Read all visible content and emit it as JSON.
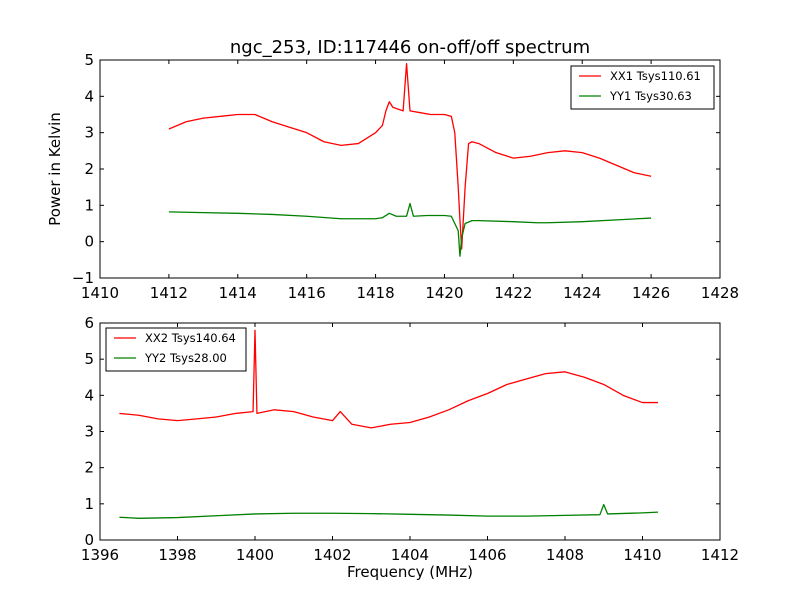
{
  "title": "ngc_253, ID:117446 on-off/off spectrum",
  "colors": {
    "red": "#ff0000",
    "green": "#008000",
    "axes": "#000000"
  },
  "chart_data": [
    {
      "type": "line",
      "title": "ngc_253, ID:117446 on-off/off spectrum",
      "xlabel": "",
      "ylabel": "Power in Kelvin",
      "xlim": [
        1410,
        1428
      ],
      "ylim": [
        -1,
        5
      ],
      "xticks": [
        1410,
        1412,
        1414,
        1416,
        1418,
        1420,
        1422,
        1424,
        1426,
        1428
      ],
      "yticks": [
        -1,
        0,
        1,
        2,
        3,
        4,
        5
      ],
      "ytick_labels": [
        "−1",
        "0",
        "1",
        "2",
        "3",
        "4",
        "5"
      ],
      "grid": false,
      "legend_position": "upper right",
      "series": [
        {
          "name": "XX1 Tsys110.61",
          "color": "#ff0000",
          "x": [
            1412.0,
            1412.5,
            1413.0,
            1413.5,
            1414.0,
            1414.5,
            1415.0,
            1415.5,
            1416.0,
            1416.5,
            1417.0,
            1417.5,
            1418.0,
            1418.2,
            1418.3,
            1418.4,
            1418.5,
            1418.8,
            1418.9,
            1419.0,
            1419.3,
            1419.6,
            1420.0,
            1420.2,
            1420.3,
            1420.4,
            1420.45,
            1420.5,
            1420.6,
            1420.7,
            1420.8,
            1421.0,
            1421.5,
            1422.0,
            1422.5,
            1423.0,
            1423.5,
            1424.0,
            1424.5,
            1425.0,
            1425.5,
            1426.0
          ],
          "values": [
            3.1,
            3.3,
            3.4,
            3.45,
            3.5,
            3.5,
            3.3,
            3.15,
            3.0,
            2.75,
            2.65,
            2.7,
            3.0,
            3.2,
            3.6,
            3.85,
            3.7,
            3.6,
            4.9,
            3.6,
            3.55,
            3.5,
            3.5,
            3.45,
            3.0,
            1.5,
            0.6,
            -0.2,
            1.5,
            2.7,
            2.75,
            2.7,
            2.45,
            2.3,
            2.35,
            2.45,
            2.5,
            2.45,
            2.3,
            2.1,
            1.9,
            1.8
          ]
        },
        {
          "name": "YY1 Tsys30.63",
          "color": "#008000",
          "x": [
            1412.0,
            1413.0,
            1414.0,
            1415.0,
            1416.0,
            1417.0,
            1418.0,
            1418.2,
            1418.4,
            1418.6,
            1418.9,
            1419.0,
            1419.1,
            1419.5,
            1420.0,
            1420.2,
            1420.4,
            1420.45,
            1420.5,
            1420.6,
            1420.8,
            1421.0,
            1422.0,
            1422.7,
            1423.0,
            1424.0,
            1425.0,
            1426.0
          ],
          "values": [
            0.82,
            0.8,
            0.78,
            0.75,
            0.7,
            0.63,
            0.63,
            0.66,
            0.78,
            0.7,
            0.7,
            1.05,
            0.7,
            0.72,
            0.72,
            0.7,
            0.3,
            -0.4,
            0.1,
            0.5,
            0.58,
            0.58,
            0.55,
            0.52,
            0.52,
            0.55,
            0.6,
            0.65
          ]
        }
      ]
    },
    {
      "type": "line",
      "title": "",
      "xlabel": "Frequency (MHz)",
      "ylabel": "",
      "xlim": [
        1396,
        1412
      ],
      "ylim": [
        0,
        6
      ],
      "xticks": [
        1396,
        1398,
        1400,
        1402,
        1404,
        1406,
        1408,
        1410,
        1412
      ],
      "yticks": [
        0,
        1,
        2,
        3,
        4,
        5,
        6
      ],
      "ytick_labels": [
        "0",
        "1",
        "2",
        "3",
        "4",
        "5",
        "6"
      ],
      "grid": false,
      "legend_position": "upper left",
      "series": [
        {
          "name": "XX2 Tsys140.64",
          "color": "#ff0000",
          "x": [
            1396.5,
            1397.0,
            1397.5,
            1398.0,
            1398.5,
            1399.0,
            1399.5,
            1399.95,
            1400.0,
            1400.05,
            1400.5,
            1401.0,
            1401.5,
            1402.0,
            1402.2,
            1402.5,
            1403.0,
            1403.5,
            1404.0,
            1404.5,
            1405.0,
            1405.5,
            1406.0,
            1406.5,
            1407.0,
            1407.5,
            1408.0,
            1408.5,
            1409.0,
            1409.5,
            1410.0,
            1410.4
          ],
          "values": [
            3.5,
            3.45,
            3.35,
            3.3,
            3.35,
            3.4,
            3.5,
            3.55,
            5.8,
            3.5,
            3.6,
            3.55,
            3.4,
            3.3,
            3.55,
            3.2,
            3.1,
            3.2,
            3.25,
            3.4,
            3.6,
            3.85,
            4.05,
            4.3,
            4.45,
            4.6,
            4.65,
            4.5,
            4.3,
            4.0,
            3.8,
            3.8
          ]
        },
        {
          "name": "YY2 Tsys28.00",
          "color": "#008000",
          "x": [
            1396.5,
            1397.0,
            1398.0,
            1399.0,
            1400.0,
            1401.0,
            1402.0,
            1403.0,
            1404.0,
            1405.0,
            1406.0,
            1407.0,
            1408.0,
            1408.9,
            1409.0,
            1409.1,
            1410.0,
            1410.4
          ],
          "values": [
            0.63,
            0.6,
            0.62,
            0.67,
            0.72,
            0.74,
            0.74,
            0.73,
            0.71,
            0.69,
            0.66,
            0.66,
            0.68,
            0.7,
            0.98,
            0.72,
            0.75,
            0.77
          ]
        }
      ]
    }
  ]
}
